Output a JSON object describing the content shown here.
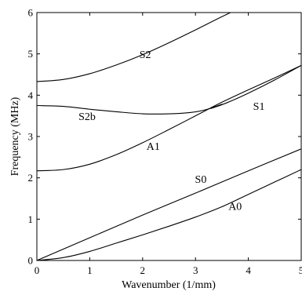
{
  "chart_data": {
    "type": "line",
    "title": "",
    "xlabel": "Wavenumber (1/mm)",
    "ylabel": "Frequency (MHz)",
    "xlim": [
      0,
      5
    ],
    "ylim": [
      0,
      6
    ],
    "xticks": [
      "0",
      "1",
      "2",
      "3",
      "4",
      "5"
    ],
    "yticks": [
      "0",
      "1",
      "2",
      "3",
      "4",
      "5",
      "6"
    ],
    "grid": false,
    "legend": "none",
    "series": [
      {
        "label": "S2",
        "label_at": [
          2.05,
          4.9
        ],
        "x": [
          0,
          0.5,
          1,
          1.5,
          2,
          2.5,
          3,
          3.5,
          4,
          4.2
        ],
        "y": [
          4.33,
          4.38,
          4.52,
          4.73,
          4.98,
          5.27,
          5.58,
          5.9,
          6.2,
          6.3
        ]
      },
      {
        "label": "S2b",
        "label_at": [
          0.95,
          3.4
        ],
        "x": [
          0,
          0.5,
          1,
          1.5,
          2,
          2.5,
          2.9,
          3.2,
          3.5
        ],
        "y": [
          3.75,
          3.73,
          3.66,
          3.6,
          3.55,
          3.55,
          3.58,
          3.65,
          3.78
        ]
      },
      {
        "label": "S1",
        "label_at": [
          4.2,
          3.65
        ],
        "x": [
          3.3,
          3.6,
          4,
          4.5,
          5
        ],
        "y": [
          3.68,
          3.82,
          4.05,
          4.37,
          4.72
        ]
      },
      {
        "label": "A1",
        "label_at": [
          2.2,
          2.68
        ],
        "x": [
          0,
          0.5,
          1,
          1.5,
          2,
          2.5,
          3,
          3.5,
          4,
          4.5,
          5
        ],
        "y": [
          2.17,
          2.2,
          2.33,
          2.56,
          2.85,
          3.17,
          3.5,
          3.83,
          4.13,
          4.42,
          4.72
        ]
      },
      {
        "label": "S0",
        "label_at": [
          3.1,
          1.88
        ],
        "x": [
          0,
          1,
          2,
          3,
          4,
          5
        ],
        "y": [
          0,
          0.55,
          1.1,
          1.63,
          2.17,
          2.7
        ]
      },
      {
        "label": "A0",
        "label_at": [
          3.75,
          1.22
        ],
        "x": [
          0,
          0.5,
          1,
          1.5,
          2,
          2.5,
          3,
          3.5,
          4,
          4.5,
          5
        ],
        "y": [
          0,
          0.07,
          0.22,
          0.42,
          0.62,
          0.83,
          1.05,
          1.3,
          1.6,
          1.9,
          2.2
        ]
      }
    ]
  }
}
